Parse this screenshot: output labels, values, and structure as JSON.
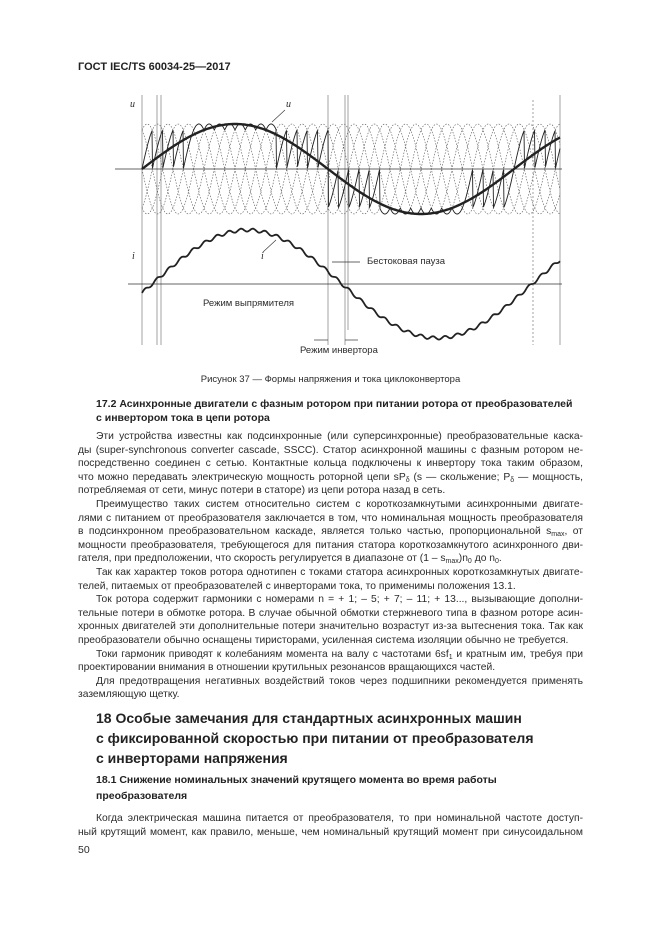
{
  "header": {
    "standard": "ГОСТ IEC/TS 60034-25—2017"
  },
  "figure": {
    "labels": {
      "u_axis": "u",
      "u_curve": "u",
      "i_axis": "i",
      "i_curve": "i",
      "dead_time": "Бестоковая пауза",
      "rectifier_mode": "Режим выпрямителя",
      "inverter_mode": "Режим инвертора"
    },
    "caption": "Рисунок 37 — Формы напряжения и тока циклоконвертора"
  },
  "section_17_2": {
    "heading": [
      "17.2 Асинхронные двигатели с фазным ротором при питании ротора от преобразователей",
      "с инвертором тока в цепи ротора"
    ],
    "lines": [
      [
        [
          "Эти устройства известны как подсинхронные (или суперсинхронные) преобразовательные каска-"
        ],
        "ind"
      ],
      [
        [
          "ды (super-synchronous converter cascade, SSCC). Статор асинхронной машины с фазным ротором не-"
        ],
        ""
      ],
      [
        [
          "посредственно соединен с сетью. Контактные кольца подключены к инвертору тока таким образом,"
        ],
        ""
      ],
      [
        [
          "что можно передавать электрическую мощность роторной цепи sP",
          {
            "sub": "δ"
          },
          " (s — скольжение; P",
          {
            "sub": "δ"
          },
          " — мощность,"
        ],
        ""
      ],
      [
        [
          "потребляемая от сети, минус потери в статоре) из цепи ротора назад в сеть."
        ],
        "last"
      ],
      [
        [
          "Преимущество таких систем относительно систем с короткозамкнутыми асинхронными двигате-"
        ],
        "ind"
      ],
      [
        [
          "лями с питанием от преобразователя заключается в том, что номинальная мощность преобразователя"
        ],
        ""
      ],
      [
        [
          "в подсинхронном преобразовательном каскаде, является только частью, пропорциональной s",
          {
            "sub": "max"
          },
          ", от"
        ],
        ""
      ],
      [
        [
          "мощности преобразователя, требующегося для питания статора короткозамкнутого асинхронного дви-"
        ],
        ""
      ],
      [
        [
          "гателя, при предположении, что скорость регулируется в диапазоне от (1 – s",
          {
            "sub": "max"
          },
          ")n",
          {
            "sub": "0"
          },
          " до n",
          {
            "sub": "0"
          },
          "."
        ],
        "last"
      ],
      [
        [
          "Так как характер токов ротора однотипен с токами статора асинхронных короткозамкнутых двигате-"
        ],
        "ind"
      ],
      [
        [
          "телей, питаемых от преобразователей с инверторами тока, то применимы положения 13.1."
        ],
        "last"
      ],
      [
        [
          "Ток ротора содержит гармоники с номерами n = + 1; – 5; + 7; – 11; + 13..., вызывающие дополни-"
        ],
        "ind"
      ],
      [
        [
          "тельные потери в обмотке ротора. В случае обычной обмотки стержневого типа в фазном роторе асин-"
        ],
        ""
      ],
      [
        [
          "хронных двигателей эти дополнительные потери значительно возрастут из-за вытеснения тока. Так как"
        ],
        ""
      ],
      [
        [
          "преобразователи обычно оснащены тиристорами, усиленная система изоляции обычно не требуется."
        ],
        "last"
      ],
      [
        [
          "Токи гармоник приводят к колебаниям момента на валу с частотами 6sf",
          {
            "sub": "1"
          },
          " и кратным им, требуя при"
        ],
        "ind"
      ],
      [
        [
          "проектировании внимания в отношении крутильных резонансов вращающихся частей."
        ],
        "last"
      ],
      [
        [
          "Для предотвращения негативных воздействий токов через подшипники рекомендуется применять"
        ],
        "ind"
      ],
      [
        [
          "заземляющую щетку."
        ],
        "last"
      ]
    ]
  },
  "section_18": {
    "heading": [
      "18 Особые замечания для стандартных асинхронных машин",
      "с фиксированной скоростью при питании от преобразователя",
      "с инверторами напряжения"
    ]
  },
  "section_18_1": {
    "heading": [
      "18.1 Снижение номинальных значений крутящего момента во время работы",
      "преобразователя"
    ],
    "lines": [
      [
        [
          "Когда электрическая машина питается от преобразователя, то при номинальной частоте доступ-"
        ],
        "ind"
      ],
      [
        [
          "ный крутящий момент, как правило, меньше, чем номинальный крутящий момент при синусоидальном"
        ],
        ""
      ]
    ]
  },
  "footer": {
    "page_number": "50"
  }
}
